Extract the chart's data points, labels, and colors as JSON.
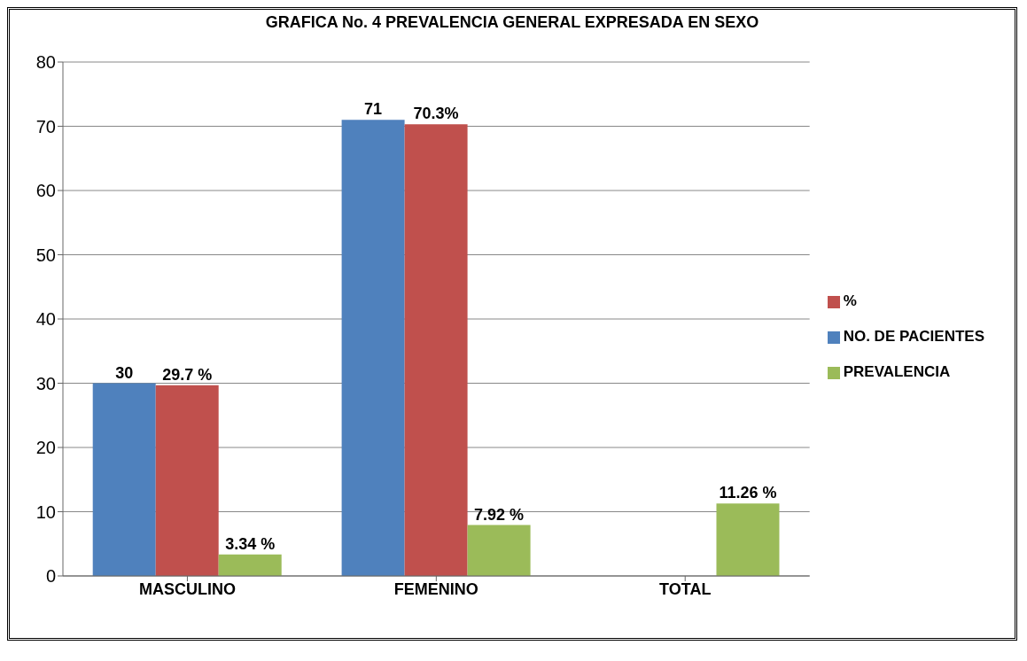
{
  "chart_data": {
    "type": "bar",
    "title": "GRAFICA No. 4 PREVALENCIA GENERAL EXPRESADA EN SEXO",
    "categories": [
      "MASCULINO",
      "FEMENINO",
      "TOTAL"
    ],
    "series": [
      {
        "name": "NO. DE PACIENTES",
        "color": "#4f81bd",
        "values": [
          30,
          71,
          null
        ],
        "value_labels": [
          "30",
          "71",
          null
        ]
      },
      {
        "name": "%",
        "color": "#c0504d",
        "values": [
          29.7,
          70.3,
          null
        ],
        "value_labels": [
          "29.7 %",
          "70.3%",
          null
        ]
      },
      {
        "name": "PREVALENCIA",
        "color": "#9bbb59",
        "values": [
          3.34,
          7.92,
          11.26
        ],
        "value_labels": [
          "3.34 %",
          "7.92 %",
          "11.26 %"
        ]
      }
    ],
    "ylim": [
      0,
      80
    ],
    "yticks": [
      0,
      10,
      20,
      30,
      40,
      50,
      60,
      70,
      80
    ],
    "grid": "y",
    "legend": "right"
  }
}
